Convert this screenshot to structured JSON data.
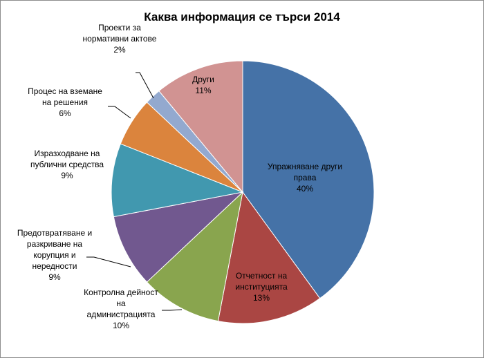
{
  "chart_data": {
    "type": "pie",
    "title": "Каква информация се търси  2014",
    "slices": [
      {
        "label": [
          "Упражняване други",
          "права"
        ],
        "percent_label": "40%",
        "value": 40,
        "color": "#4572a7"
      },
      {
        "label": [
          "Отчетност на",
          "институцията"
        ],
        "percent_label": "13%",
        "value": 13,
        "color": "#aa4643"
      },
      {
        "label": [
          "Контролна дейност",
          "на",
          "администрацията"
        ],
        "percent_label": "10%",
        "value": 10,
        "color": "#89a54e"
      },
      {
        "label": [
          "Предотвратяване и",
          "разкриване на",
          "корупция и",
          "нередности"
        ],
        "percent_label": "9%",
        "value": 9,
        "color": "#71588f"
      },
      {
        "label": [
          "Изразходване на",
          "публични средства"
        ],
        "percent_label": "9%",
        "value": 9,
        "color": "#4198af"
      },
      {
        "label": [
          "Процес на вземане",
          "на решения"
        ],
        "percent_label": "6%",
        "value": 6,
        "color": "#db843d"
      },
      {
        "label": [
          "Проекти за",
          "нормативни актове"
        ],
        "percent_label": "2%",
        "value": 2,
        "color": "#93a9cf"
      },
      {
        "label": [
          "Други"
        ],
        "percent_label": "11%",
        "value": 11,
        "color": "#d19392"
      }
    ]
  }
}
